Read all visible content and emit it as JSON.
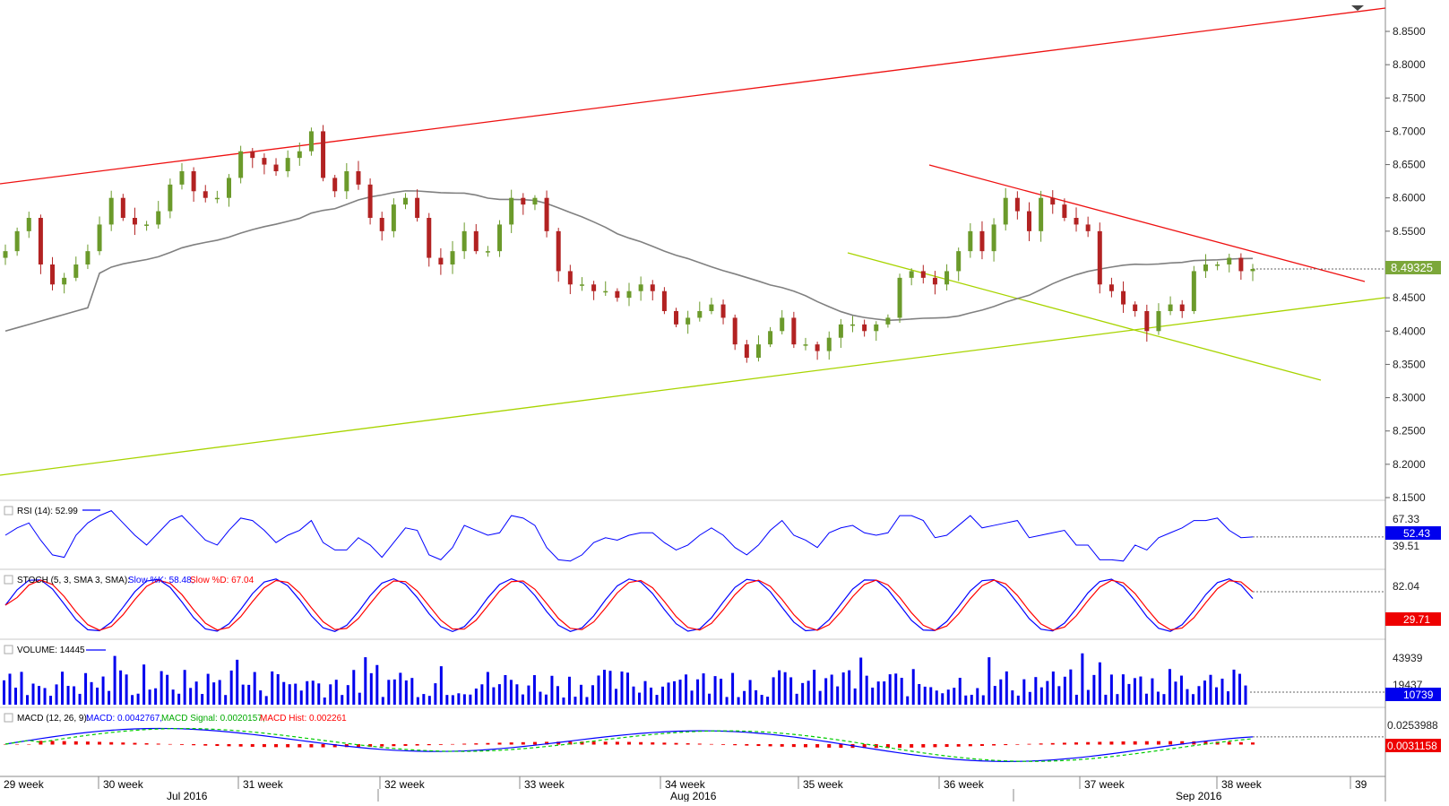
{
  "chart_data": [
    {
      "type": "candlestick",
      "title": "",
      "y_axis_ticks": [
        "8.8500",
        "8.8000",
        "8.7500",
        "8.7000",
        "8.6500",
        "8.6000",
        "8.5500",
        "8.4500",
        "8.4000",
        "8.3500",
        "8.3000",
        "8.2500",
        "8.2000",
        "8.1500"
      ],
      "ylim": [
        8.15,
        8.88
      ],
      "last_price_label": "8.49325",
      "last_price": 8.49325,
      "moving_average_color": "#808080",
      "candle_up_color": "#6b9a2b",
      "candle_down_color": "#b22222",
      "closes_approx": [
        8.52,
        8.55,
        8.57,
        8.5,
        8.47,
        8.48,
        8.5,
        8.52,
        8.56,
        8.6,
        8.57,
        8.56,
        8.56,
        8.58,
        8.62,
        8.64,
        8.61,
        8.6,
        8.6,
        8.63,
        8.67,
        8.66,
        8.65,
        8.64,
        8.66,
        8.67,
        8.7,
        8.63,
        8.61,
        8.64,
        8.62,
        8.57,
        8.55,
        8.59,
        8.6,
        8.57,
        8.51,
        8.5,
        8.52,
        8.55,
        8.52,
        8.52,
        8.56,
        8.6,
        8.59,
        8.6,
        8.55,
        8.49,
        8.47,
        8.47,
        8.46,
        8.46,
        8.45,
        8.46,
        8.47,
        8.46,
        8.43,
        8.41,
        8.42,
        8.43,
        8.44,
        8.42,
        8.38,
        8.36,
        8.38,
        8.4,
        8.42,
        8.38,
        8.38,
        8.37,
        8.39,
        8.41,
        8.41,
        8.4,
        8.41,
        8.42,
        8.48,
        8.49,
        8.48,
        8.47,
        8.49,
        8.52,
        8.55,
        8.52,
        8.56,
        8.6,
        8.58,
        8.55,
        8.6,
        8.59,
        8.57,
        8.56,
        8.55,
        8.47,
        8.46,
        8.44,
        8.43,
        8.4,
        8.43,
        8.44,
        8.43,
        8.49,
        8.5,
        8.5,
        8.51,
        8.49,
        8.49325
      ]
    },
    {
      "type": "line",
      "indicator": "RSI",
      "label": "RSI (14): 52.99",
      "axis_ticks": [
        "67.33",
        "39.51"
      ],
      "current_value_label": "52.43",
      "current_value": 52.43,
      "line_color": "#0000ff"
    },
    {
      "type": "line",
      "indicator": "STOCH",
      "label_prefix": "STOCH (5, 3, SMA 3, SMA):",
      "label_k": "Slow %K: 58.48,",
      "label_d": "Slow %D: 67.04",
      "axis_ticks": [
        "82.04"
      ],
      "current_value_label": "29.71",
      "current_value": 29.71,
      "series": [
        {
          "name": "Slow %K",
          "color": "#0000ff"
        },
        {
          "name": "Slow %D",
          "color": "#ff0000"
        }
      ]
    },
    {
      "type": "bar",
      "indicator": "VOLUME",
      "label": "VOLUME: 14445",
      "axis_ticks": [
        "43939",
        "19437"
      ],
      "current_value_label": "10739",
      "current_value": 10739,
      "bar_color": "#0000ff"
    },
    {
      "type": "line",
      "indicator": "MACD",
      "label_prefix": "MACD (12, 26, 9):",
      "label_macd": "MACD: 0.0042767,",
      "label_signal": "MACD Signal: 0.0020157,",
      "label_hist": "MACD Hist: 0.002261",
      "axis_ticks": [
        "0.0253988"
      ],
      "current_value_label": "0.0031158",
      "current_value": 0.0031158,
      "series": [
        {
          "name": "MACD",
          "color": "#0000ff"
        },
        {
          "name": "MACD Signal",
          "color": "#00cc00"
        },
        {
          "name": "MACD Hist",
          "color": "#ff0000"
        }
      ]
    }
  ],
  "time_axis": {
    "weeks": [
      "29 week",
      "30 week",
      "31 week",
      "32 week",
      "33 week",
      "34 week",
      "35 week",
      "36 week",
      "37 week",
      "38 week",
      "39"
    ],
    "months": [
      "Jul 2016",
      "Aug 2016",
      "Sep 2016"
    ]
  }
}
